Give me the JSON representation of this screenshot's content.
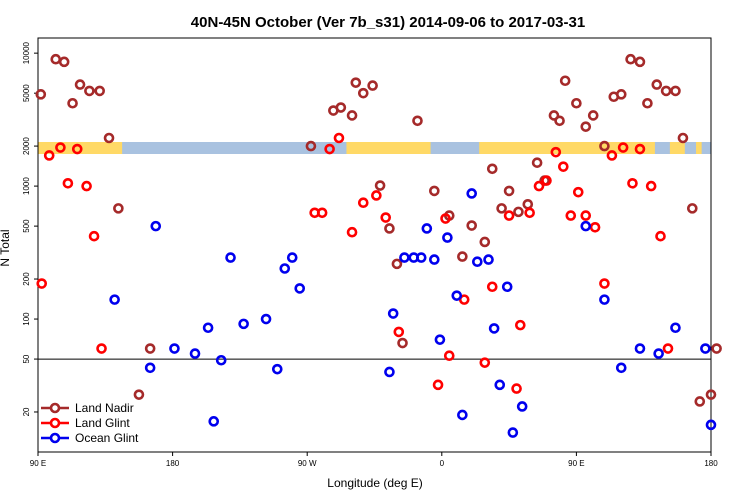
{
  "chart_data": {
    "type": "scatter",
    "title": "40N-45N October (Ver 7b_s31)   2014-09-06 to 2017-03-31",
    "xlabel": "Longitude (deg E)",
    "ylabel": "N Total",
    "y_scale": "log",
    "ylim": [
      10,
      13000
    ],
    "x_tick_labels": [
      "90 E",
      "180",
      "90 W",
      "0",
      "90 E",
      "180"
    ],
    "y_tick_labels": [
      "20",
      "50",
      "100",
      "200",
      "500",
      "1000",
      "2000",
      "5000",
      "10000"
    ],
    "reference_line": 50,
    "legend_position": "bottom-left",
    "colors": {
      "land_nadir": "#a52a2a",
      "land_glint": "#ff0000",
      "ocean_glint": "#0000ee",
      "map_land": "#ffd966",
      "map_ocean": "#a9c2e0"
    },
    "series": [
      {
        "name": "Land Nadir",
        "color": "#a52a2a",
        "points": [
          [
            91.5,
            4900
          ],
          [
            99.5,
            9000
          ],
          [
            104,
            8600
          ],
          [
            108.5,
            4200
          ],
          [
            112.5,
            5800
          ],
          [
            117.5,
            5200
          ],
          [
            123,
            5200
          ],
          [
            128,
            2300
          ],
          [
            133,
            680
          ],
          [
            144,
            27
          ],
          [
            150,
            60
          ],
          [
            236,
            2000
          ],
          [
            248,
            3700
          ],
          [
            252,
            3900
          ],
          [
            258,
            3400
          ],
          [
            260,
            6000
          ],
          [
            264,
            5000
          ],
          [
            269,
            5700
          ],
          [
            273,
            1010
          ],
          [
            278,
            480
          ],
          [
            282,
            260
          ],
          [
            285,
            66
          ],
          [
            293,
            3100
          ],
          [
            302,
            920
          ],
          [
            310,
            600
          ],
          [
            317,
            295
          ],
          [
            322,
            505
          ],
          [
            329,
            380
          ],
          [
            333,
            1350
          ],
          [
            338,
            680
          ],
          [
            342,
            920
          ],
          [
            347,
            640
          ],
          [
            352,
            730
          ],
          [
            357,
            1500
          ],
          [
            361,
            1100
          ],
          [
            366,
            3400
          ],
          [
            369,
            3100
          ],
          [
            372,
            6200
          ],
          [
            378,
            4200
          ],
          [
            383,
            2800
          ],
          [
            387,
            3400
          ],
          [
            393,
            2000
          ],
          [
            398,
            4700
          ],
          [
            402,
            4900
          ],
          [
            407,
            9000
          ],
          [
            412,
            8600
          ],
          [
            416,
            4200
          ],
          [
            421,
            5800
          ],
          [
            426,
            5200
          ],
          [
            431,
            5200
          ],
          [
            435,
            2300
          ],
          [
            440,
            680
          ],
          [
            444,
            24
          ],
          [
            450,
            27
          ],
          [
            453,
            60
          ]
        ]
      },
      {
        "name": "Land Glint",
        "color": "#ff0000",
        "points": [
          [
            92,
            185
          ],
          [
            96,
            1700
          ],
          [
            102,
            1950
          ],
          [
            106,
            1050
          ],
          [
            111,
            1900
          ],
          [
            116,
            1000
          ],
          [
            120,
            420
          ],
          [
            124,
            60
          ],
          [
            238,
            630
          ],
          [
            242,
            630
          ],
          [
            246,
            1900
          ],
          [
            251,
            2300
          ],
          [
            258,
            450
          ],
          [
            264,
            750
          ],
          [
            271,
            850
          ],
          [
            276,
            580
          ],
          [
            283,
            80
          ],
          [
            304,
            32
          ],
          [
            308,
            570
          ],
          [
            310,
            53
          ],
          [
            318,
            140
          ],
          [
            329,
            47
          ],
          [
            333,
            175
          ],
          [
            342,
            600
          ],
          [
            346,
            30
          ],
          [
            348,
            90
          ],
          [
            353,
            630
          ],
          [
            358,
            1000
          ],
          [
            362,
            1100
          ],
          [
            367,
            1800
          ],
          [
            371,
            1400
          ],
          [
            375,
            600
          ],
          [
            379,
            900
          ],
          [
            383,
            600
          ],
          [
            388,
            490
          ],
          [
            393,
            185
          ],
          [
            397,
            1700
          ],
          [
            403,
            1950
          ],
          [
            408,
            1050
          ],
          [
            412,
            1900
          ],
          [
            418,
            1000
          ],
          [
            423,
            420
          ],
          [
            427,
            60
          ]
        ]
      },
      {
        "name": "Ocean Glint",
        "color": "#0000ee",
        "points": [
          [
            131,
            140
          ],
          [
            150,
            43
          ],
          [
            153,
            500
          ],
          [
            163,
            60
          ],
          [
            174,
            55
          ],
          [
            181,
            86
          ],
          [
            184,
            17
          ],
          [
            188,
            49
          ],
          [
            193,
            290
          ],
          [
            200,
            92
          ],
          [
            212,
            100
          ],
          [
            218,
            42
          ],
          [
            222,
            240
          ],
          [
            226,
            290
          ],
          [
            230,
            170
          ],
          [
            278,
            40
          ],
          [
            280,
            110
          ],
          [
            286,
            290
          ],
          [
            291,
            290
          ],
          [
            295,
            290
          ],
          [
            298,
            480
          ],
          [
            302,
            280
          ],
          [
            305,
            70
          ],
          [
            309,
            410
          ],
          [
            314,
            150
          ],
          [
            317,
            19
          ],
          [
            322,
            880
          ],
          [
            325,
            270
          ],
          [
            331,
            280
          ],
          [
            334,
            85
          ],
          [
            337,
            32
          ],
          [
            341,
            175
          ],
          [
            344,
            14
          ],
          [
            349,
            22
          ],
          [
            383,
            500
          ],
          [
            393,
            140
          ],
          [
            402,
            43
          ],
          [
            412,
            60
          ],
          [
            422,
            55
          ],
          [
            431,
            86
          ],
          [
            447,
            60
          ],
          [
            450,
            16
          ]
        ]
      }
    ]
  }
}
